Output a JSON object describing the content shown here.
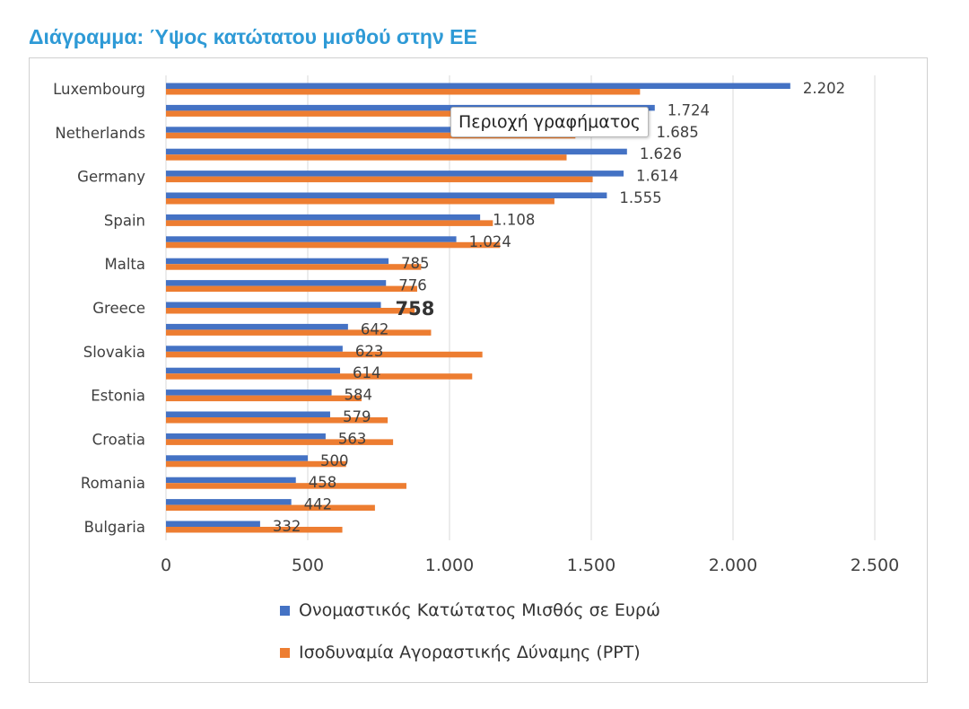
{
  "page": {
    "title": "Διάγραμμα: Ύψος κατώτατου μισθού στην ΕΕ",
    "tooltip": "Περιοχή γραφήματος"
  },
  "colors": {
    "series1": "#4472c4",
    "series2": "#ed7d31",
    "title": "#2e9ad6",
    "grid": "#d9d9d9"
  },
  "chart_data": {
    "type": "bar",
    "orientation": "horizontal",
    "title": "",
    "xlim": [
      0,
      2500
    ],
    "xticks": [
      0,
      500,
      1000,
      1500,
      2000,
      2500
    ],
    "xtick_labels": [
      "0",
      "500",
      "1.000",
      "1.500",
      "2.000",
      "2.500"
    ],
    "grid": true,
    "legend_position": "bottom",
    "categories": [
      "Luxembourg",
      "",
      "Netherlands",
      "",
      "Germany",
      "",
      "Spain",
      "",
      "Malta",
      "",
      "Greece",
      "",
      "Slovakia",
      "",
      "Estonia",
      "",
      "Croatia",
      "",
      "Romania",
      "",
      "Bulgaria"
    ],
    "value_labels": [
      "2.202",
      "1.724",
      "1.685",
      "1.626",
      "1.614",
      "1.555",
      "1.108",
      "1.024",
      "785",
      "776",
      "758",
      "642",
      "623",
      "614",
      "584",
      "579",
      "563",
      "500",
      "458",
      "442",
      "332"
    ],
    "highlight_index": 10,
    "series": [
      {
        "name": "Ονομαστικός Κατώτατος Μισθός σε Ευρώ",
        "values": [
          2202,
          1724,
          1685,
          1626,
          1614,
          1555,
          1108,
          1024,
          785,
          776,
          758,
          642,
          623,
          614,
          584,
          579,
          563,
          500,
          458,
          442,
          332
        ]
      },
      {
        "name": "Ισοδυναμία Αγοραστικής Δύναμης (PPT)",
        "values": [
          1672,
          1450,
          1444,
          1413,
          1505,
          1370,
          1153,
          1178,
          900,
          886,
          877,
          935,
          1116,
          1080,
          690,
          782,
          801,
          635,
          848,
          737,
          622
        ]
      }
    ]
  }
}
